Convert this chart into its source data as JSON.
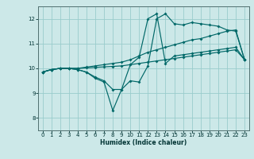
{
  "xlabel": "Humidex (Indice chaleur)",
  "bg_color": "#cce8e8",
  "grid_color": "#99cccc",
  "line_color": "#006868",
  "xlim": [
    -0.5,
    23.5
  ],
  "ylim": [
    7.5,
    12.5
  ],
  "xticks": [
    0,
    1,
    2,
    3,
    4,
    5,
    6,
    7,
    8,
    9,
    10,
    11,
    12,
    13,
    14,
    15,
    16,
    17,
    18,
    19,
    20,
    21,
    22,
    23
  ],
  "yticks": [
    8,
    9,
    10,
    11,
    12
  ],
  "s1_x": [
    0,
    1,
    2,
    3,
    4,
    5,
    6,
    7,
    8,
    9,
    10,
    11,
    12,
    13,
    14,
    15,
    16,
    17,
    18,
    19,
    20,
    21,
    22,
    23
  ],
  "s1_y": [
    9.85,
    9.95,
    10.0,
    10.0,
    9.95,
    9.85,
    9.65,
    9.5,
    9.15,
    9.15,
    9.5,
    9.45,
    10.1,
    12.0,
    12.2,
    11.8,
    11.75,
    11.85,
    11.8,
    11.75,
    11.7,
    11.55,
    11.5,
    10.35
  ],
  "s2_x": [
    0,
    1,
    2,
    3,
    4,
    5,
    6,
    7,
    8,
    9,
    10,
    11,
    12,
    13,
    14,
    15,
    16,
    17,
    18,
    19,
    20,
    21,
    22,
    23
  ],
  "s2_y": [
    9.85,
    9.95,
    10.0,
    10.0,
    9.95,
    9.85,
    9.6,
    9.45,
    8.3,
    9.15,
    10.15,
    10.45,
    12.0,
    12.2,
    10.2,
    10.5,
    10.55,
    10.6,
    10.65,
    10.7,
    10.75,
    10.8,
    10.85,
    10.35
  ],
  "s3_x": [
    0,
    1,
    2,
    3,
    4,
    5,
    6,
    7,
    8,
    9,
    10,
    11,
    12,
    13,
    14,
    15,
    16,
    17,
    18,
    19,
    20,
    21,
    22,
    23
  ],
  "s3_y": [
    9.85,
    9.95,
    10.0,
    10.0,
    10.0,
    10.05,
    10.1,
    10.15,
    10.2,
    10.25,
    10.35,
    10.5,
    10.65,
    10.75,
    10.85,
    10.95,
    11.05,
    11.15,
    11.2,
    11.3,
    11.4,
    11.5,
    11.55,
    10.35
  ],
  "s4_x": [
    0,
    1,
    2,
    3,
    4,
    5,
    6,
    7,
    8,
    9,
    10,
    11,
    12,
    13,
    14,
    15,
    16,
    17,
    18,
    19,
    20,
    21,
    22,
    23
  ],
  "s4_y": [
    9.85,
    9.95,
    10.0,
    10.0,
    10.0,
    10.02,
    10.04,
    10.06,
    10.08,
    10.1,
    10.15,
    10.2,
    10.25,
    10.3,
    10.35,
    10.4,
    10.45,
    10.5,
    10.55,
    10.6,
    10.65,
    10.7,
    10.75,
    10.35
  ]
}
